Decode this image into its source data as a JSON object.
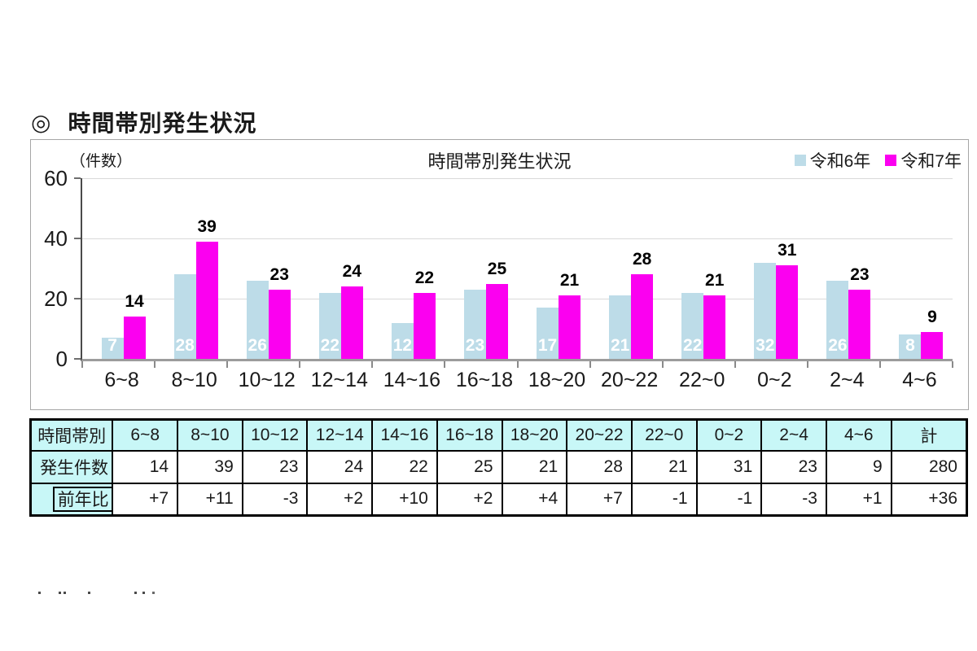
{
  "page": {
    "heading": {
      "marker": "◎",
      "title": "時間帯別発生状況"
    }
  },
  "chart": {
    "title": "時間帯別発生状況",
    "unit_label": "（件数）",
    "legend": [
      {
        "label": "令和6年",
        "color": "#BDDCE8"
      },
      {
        "label": "令和7年",
        "color": "#FB00F0"
      }
    ],
    "y_ticks": [
      60,
      40,
      20,
      0
    ]
  },
  "chart_data": {
    "type": "bar",
    "title": "時間帯別発生状況",
    "ylabel": "（件数）",
    "ylim": [
      0,
      60
    ],
    "y_tick_step": 20,
    "grid": true,
    "legend_position": "top-right",
    "categories": [
      "6~8",
      "8~10",
      "10~12",
      "12~14",
      "14~16",
      "16~18",
      "18~20",
      "20~22",
      "22~0",
      "0~2",
      "2~4",
      "4~6"
    ],
    "series": [
      {
        "name": "令和6年",
        "color": "#BDDCE8",
        "label_style": "inside-white",
        "values": [
          7,
          28,
          26,
          22,
          12,
          23,
          17,
          21,
          22,
          32,
          26,
          8
        ]
      },
      {
        "name": "令和7年",
        "color": "#FB00F0",
        "label_style": "above-black",
        "values": [
          14,
          39,
          23,
          24,
          22,
          25,
          21,
          28,
          21,
          31,
          23,
          9
        ]
      }
    ]
  },
  "table": {
    "corner_label": "時間帯別",
    "header_bg": "#C8F7F7",
    "columns": [
      "6~8",
      "8~10",
      "10~12",
      "12~14",
      "14~16",
      "16~18",
      "18~20",
      "20~22",
      "22~0",
      "0~2",
      "2~4",
      "4~6",
      "計"
    ],
    "rows": [
      {
        "label": "発生件数",
        "indent": false,
        "values": [
          "14",
          "39",
          "23",
          "24",
          "22",
          "25",
          "21",
          "28",
          "21",
          "31",
          "23",
          "9",
          "280"
        ]
      },
      {
        "label": "前年比",
        "indent": true,
        "values": [
          "+7",
          "+11",
          "-3",
          "+2",
          "+10",
          "+2",
          "+4",
          "+7",
          "-1",
          "-1",
          "-3",
          "+1",
          "+36"
        ]
      }
    ]
  }
}
